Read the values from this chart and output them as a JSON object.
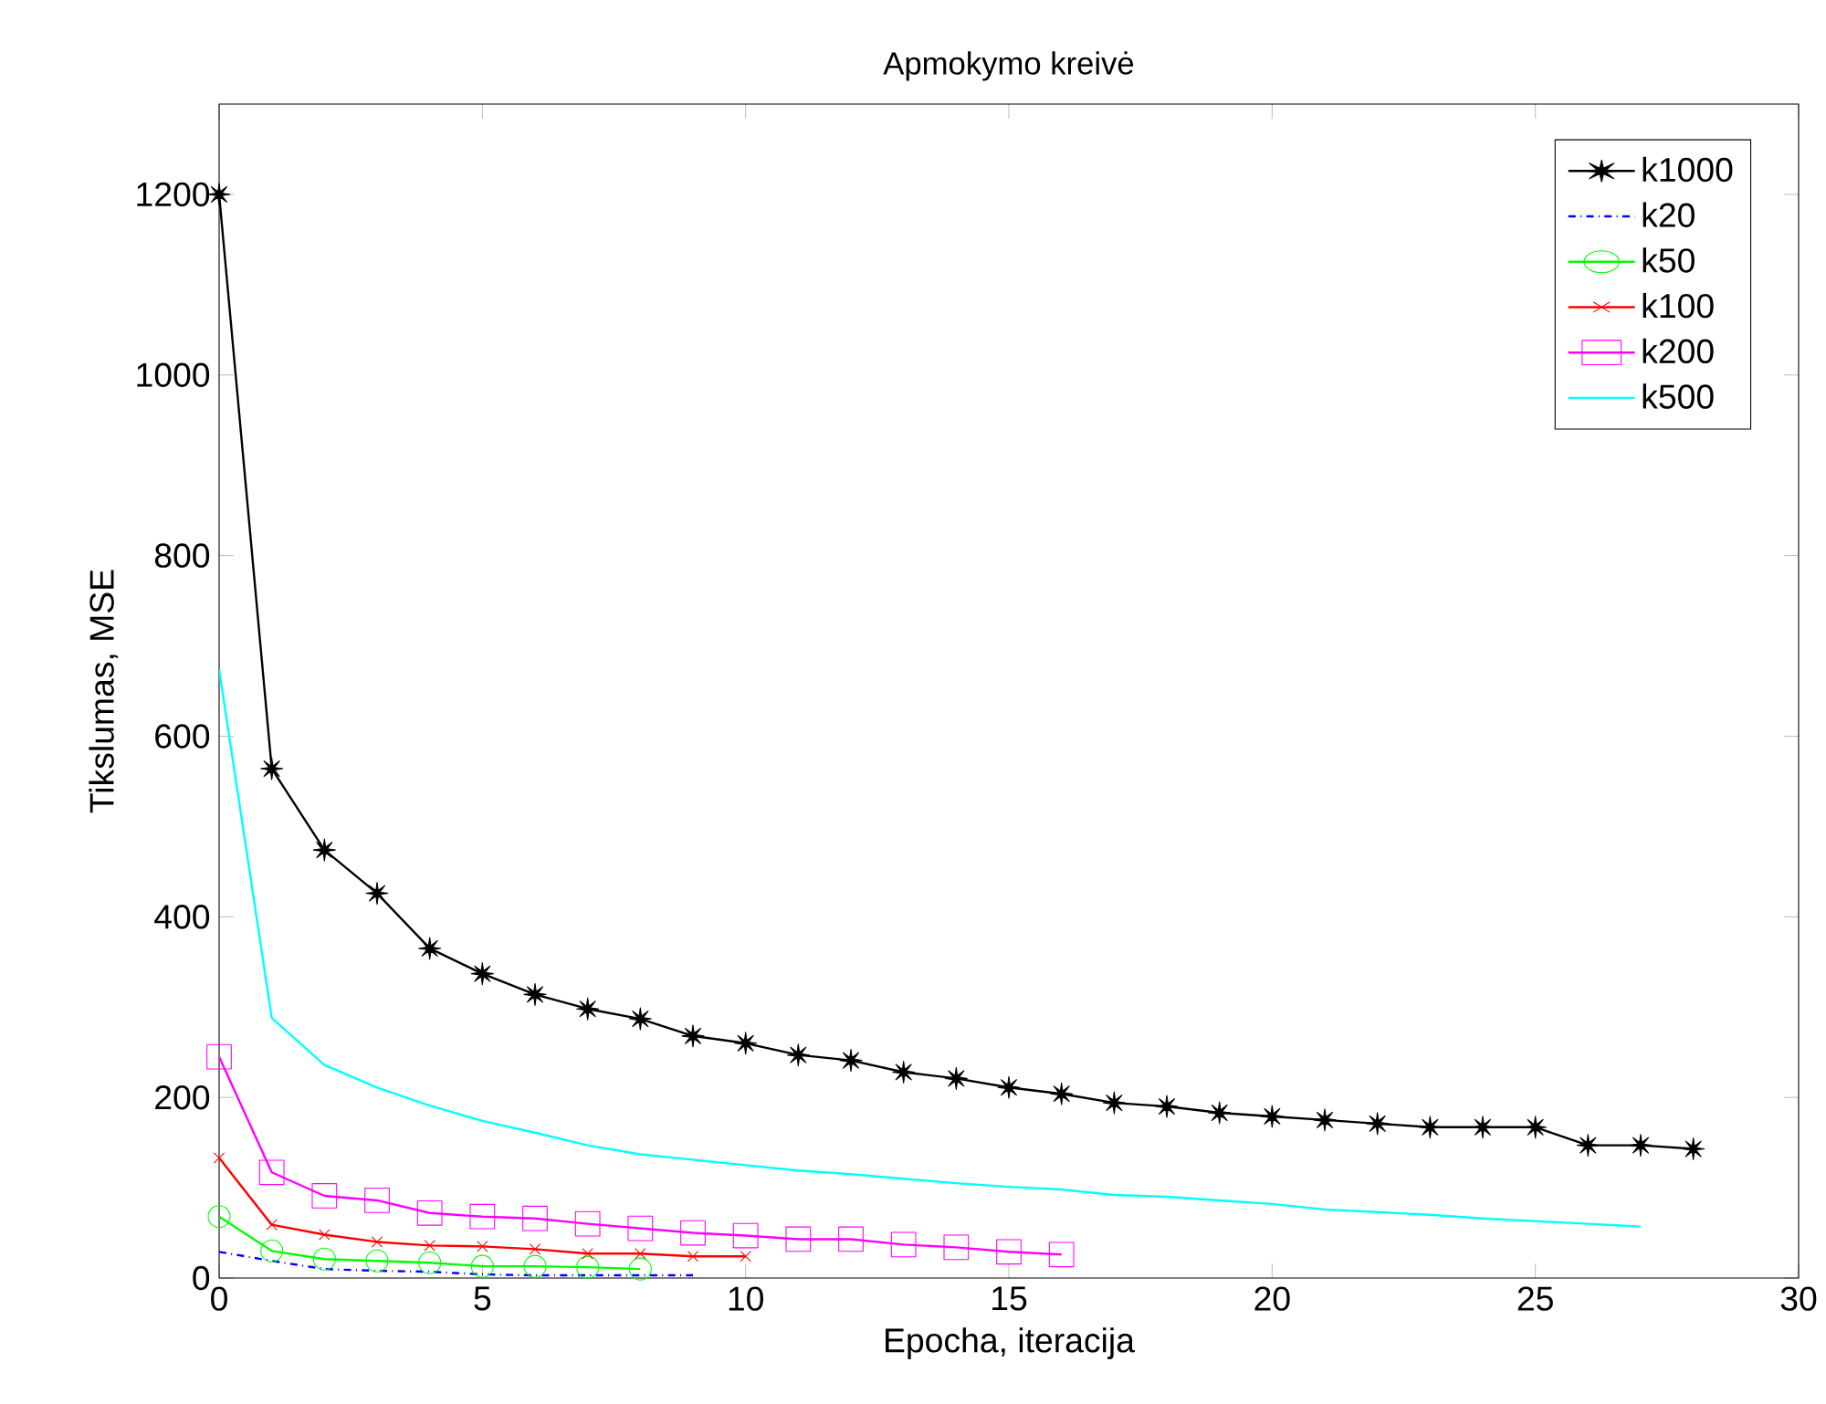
{
  "chart_data": {
    "type": "line",
    "title": "Apmokymo kreivė",
    "xlabel": "Epocha, iteracija",
    "ylabel": "Tikslumas, MSE",
    "xlim": [
      0,
      30
    ],
    "ylim": [
      0,
      1300
    ],
    "xticks": [
      0,
      5,
      10,
      15,
      20,
      25,
      30
    ],
    "yticks": [
      0,
      200,
      400,
      600,
      800,
      1000,
      1200
    ],
    "grid": false,
    "legend": "top right",
    "series": [
      {
        "name": "k1000",
        "color": "#000000",
        "marker": "star",
        "line_style": "solid",
        "x": [
          0,
          1,
          2,
          3,
          4,
          5,
          6,
          7,
          8,
          9,
          10,
          11,
          12,
          13,
          14,
          15,
          16,
          17,
          18,
          19,
          20,
          21,
          22,
          23,
          24,
          25,
          26,
          27,
          28
        ],
        "values": [
          1200,
          564,
          474,
          426,
          365,
          337,
          314,
          298,
          287,
          268,
          260,
          247,
          241,
          228,
          221,
          211,
          204,
          194,
          190,
          183,
          179,
          175,
          171,
          167,
          167,
          167,
          147,
          147,
          143
        ]
      },
      {
        "name": "k20",
        "color": "#0000ff",
        "marker": "none",
        "line_style": "dashdot",
        "x": [
          0,
          1,
          2,
          3,
          4,
          5,
          6,
          7,
          8,
          9
        ],
        "values": [
          29,
          19,
          10,
          8,
          7,
          4,
          3,
          3,
          3,
          3
        ]
      },
      {
        "name": "k50",
        "color": "#00ff00",
        "marker": "circle",
        "line_style": "solid",
        "x": [
          0,
          1,
          2,
          3,
          4,
          5,
          6,
          7,
          8
        ],
        "values": [
          68,
          30,
          21,
          19,
          17,
          13,
          13,
          12,
          10
        ]
      },
      {
        "name": "k100",
        "color": "#ff0000",
        "marker": "cross",
        "line_style": "solid",
        "x": [
          0,
          1,
          2,
          3,
          4,
          5,
          6,
          7,
          8,
          9,
          10
        ],
        "values": [
          133,
          59,
          48,
          40,
          36,
          35,
          32,
          27,
          27,
          24,
          24
        ]
      },
      {
        "name": "k200",
        "color": "#ff00ff",
        "marker": "square",
        "line_style": "solid",
        "x": [
          0,
          1,
          2,
          3,
          4,
          5,
          6,
          7,
          8,
          9,
          10,
          11,
          12,
          13,
          14,
          15,
          16
        ],
        "values": [
          245,
          117,
          91,
          86,
          72,
          68,
          66,
          60,
          55,
          50,
          47,
          43,
          43,
          37,
          34,
          29,
          26
        ]
      },
      {
        "name": "k500",
        "color": "#00ffff",
        "marker": "none",
        "line_style": "solid",
        "x": [
          0,
          1,
          2,
          3,
          4,
          5,
          6,
          7,
          8,
          9,
          10,
          11,
          12,
          13,
          14,
          15,
          16,
          17,
          18,
          19,
          20,
          21,
          22,
          23,
          24,
          25,
          26,
          27
        ],
        "values": [
          674,
          288,
          236,
          211,
          191,
          174,
          161,
          147,
          137,
          131,
          125,
          119,
          115,
          110,
          105,
          101,
          98,
          92,
          90,
          86,
          82,
          76,
          73,
          70,
          66,
          63,
          60,
          57
        ]
      }
    ]
  }
}
